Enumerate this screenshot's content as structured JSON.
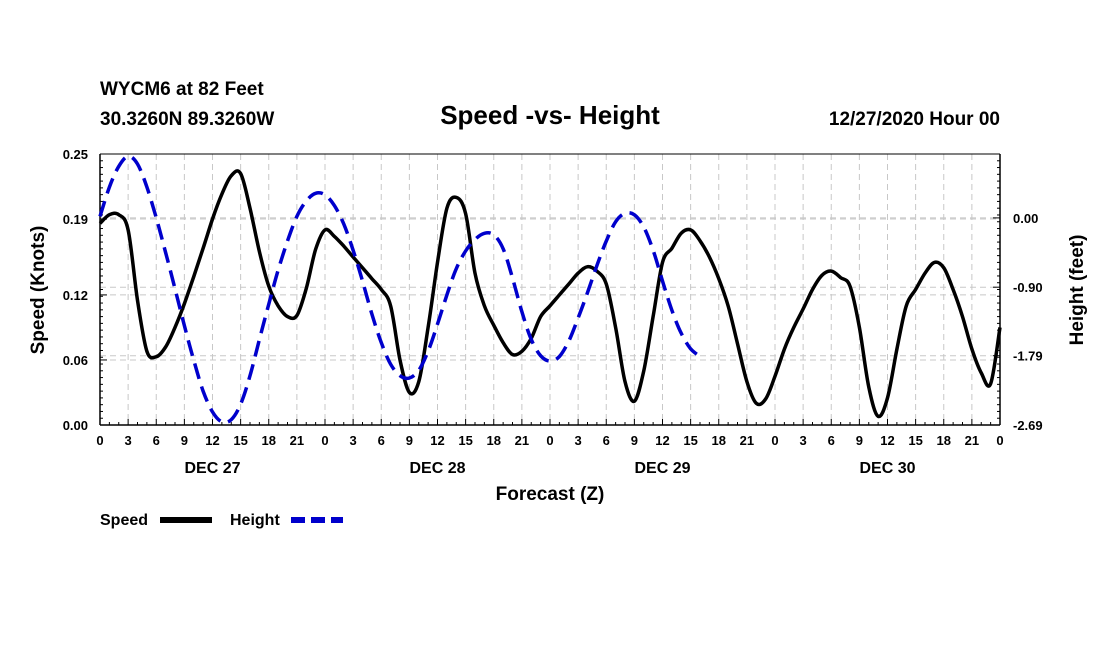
{
  "header": {
    "station": "WYCM6 at 82 Feet",
    "coords": "30.3260N 89.3260W",
    "title": "Speed -vs- Height",
    "datetime": "12/27/2020 Hour 00"
  },
  "chart_data": {
    "type": "line",
    "title": "Speed -vs- Height",
    "xlabel": "Forecast (Z)",
    "ylabel_left": "Speed (Knots)",
    "ylabel_right": "Height (feet)",
    "x_hours": [
      0,
      96
    ],
    "x_tick_labels": [
      "0",
      "3",
      "6",
      "9",
      "12",
      "15",
      "18",
      "21",
      "0",
      "3",
      "6",
      "9",
      "12",
      "15",
      "18",
      "21",
      "0",
      "3",
      "6",
      "9",
      "12",
      "15",
      "18",
      "21",
      "0",
      "3",
      "6",
      "9",
      "12",
      "15",
      "18",
      "21",
      "0"
    ],
    "day_labels": [
      "DEC 27",
      "DEC 28",
      "DEC 29",
      "DEC 30"
    ],
    "y_left": {
      "min": 0.0,
      "max": 0.25,
      "ticks": [
        0.0,
        0.06,
        0.12,
        0.19,
        0.25
      ],
      "tick_labels": [
        "0.00",
        "0.06",
        "0.12",
        "0.19",
        "0.25"
      ]
    },
    "y_right": {
      "min": -2.69,
      "max": 0.83,
      "ticks": [
        0.0,
        -0.9,
        -1.79,
        -2.69
      ],
      "tick_labels": [
        "0.00",
        "-0.90",
        "-1.79",
        "-2.69"
      ]
    },
    "grid": true,
    "series": [
      {
        "name": "Speed",
        "axis": "left",
        "color": "#000000",
        "style": "solid",
        "points": [
          [
            0,
            0.186
          ],
          [
            1,
            0.194
          ],
          [
            2,
            0.194
          ],
          [
            3,
            0.18
          ],
          [
            4,
            0.115
          ],
          [
            5,
            0.068
          ],
          [
            6,
            0.063
          ],
          [
            7,
            0.072
          ],
          [
            8,
            0.09
          ],
          [
            9,
            0.112
          ],
          [
            10,
            0.137
          ],
          [
            11,
            0.163
          ],
          [
            12,
            0.19
          ],
          [
            13,
            0.213
          ],
          [
            14,
            0.23
          ],
          [
            15,
            0.232
          ],
          [
            16,
            0.2
          ],
          [
            17,
            0.16
          ],
          [
            18,
            0.128
          ],
          [
            19,
            0.11
          ],
          [
            20,
            0.1
          ],
          [
            21,
            0.101
          ],
          [
            22,
            0.126
          ],
          [
            23,
            0.162
          ],
          [
            24,
            0.18
          ],
          [
            25,
            0.174
          ],
          [
            26,
            0.165
          ],
          [
            27,
            0.155
          ],
          [
            28,
            0.145
          ],
          [
            29,
            0.135
          ],
          [
            30,
            0.125
          ],
          [
            31,
            0.11
          ],
          [
            32,
            0.06
          ],
          [
            33,
            0.03
          ],
          [
            34,
            0.04
          ],
          [
            35,
            0.09
          ],
          [
            36,
            0.15
          ],
          [
            37,
            0.2
          ],
          [
            38,
            0.21
          ],
          [
            39,
            0.195
          ],
          [
            40,
            0.14
          ],
          [
            41,
            0.11
          ],
          [
            42,
            0.092
          ],
          [
            43,
            0.076
          ],
          [
            44,
            0.065
          ],
          [
            45,
            0.068
          ],
          [
            46,
            0.08
          ],
          [
            47,
            0.1
          ],
          [
            48,
            0.11
          ],
          [
            49,
            0.12
          ],
          [
            50,
            0.13
          ],
          [
            51,
            0.14
          ],
          [
            52,
            0.146
          ],
          [
            53,
            0.142
          ],
          [
            54,
            0.13
          ],
          [
            55,
            0.09
          ],
          [
            56,
            0.04
          ],
          [
            57,
            0.022
          ],
          [
            58,
            0.05
          ],
          [
            59,
            0.1
          ],
          [
            60,
            0.15
          ],
          [
            61,
            0.163
          ],
          [
            62,
            0.177
          ],
          [
            63,
            0.18
          ],
          [
            64,
            0.17
          ],
          [
            65,
            0.155
          ],
          [
            66,
            0.135
          ],
          [
            67,
            0.11
          ],
          [
            68,
            0.075
          ],
          [
            69,
            0.04
          ],
          [
            70,
            0.02
          ],
          [
            71,
            0.024
          ],
          [
            72,
            0.045
          ],
          [
            73,
            0.07
          ],
          [
            74,
            0.09
          ],
          [
            75,
            0.107
          ],
          [
            76,
            0.125
          ],
          [
            77,
            0.138
          ],
          [
            78,
            0.142
          ],
          [
            79,
            0.136
          ],
          [
            80,
            0.128
          ],
          [
            81,
            0.09
          ],
          [
            82,
            0.035
          ],
          [
            83,
            0.008
          ],
          [
            84,
            0.025
          ],
          [
            85,
            0.07
          ],
          [
            86,
            0.11
          ],
          [
            87,
            0.125
          ],
          [
            88,
            0.14
          ],
          [
            89,
            0.15
          ],
          [
            90,
            0.145
          ],
          [
            91,
            0.125
          ],
          [
            92,
            0.1
          ],
          [
            93,
            0.07
          ],
          [
            94,
            0.048
          ],
          [
            95,
            0.038
          ],
          [
            96,
            0.09
          ]
        ]
      },
      {
        "name": "Height",
        "axis": "right",
        "color": "#0000cc",
        "style": "dashed",
        "points": [
          [
            0,
            0.02
          ],
          [
            1,
            0.4
          ],
          [
            2,
            0.67
          ],
          [
            3,
            0.8
          ],
          [
            4,
            0.7
          ],
          [
            5,
            0.4
          ],
          [
            6,
            0.0
          ],
          [
            7,
            -0.45
          ],
          [
            8,
            -0.92
          ],
          [
            9,
            -1.4
          ],
          [
            10,
            -1.85
          ],
          [
            11,
            -2.25
          ],
          [
            12,
            -2.52
          ],
          [
            13,
            -2.65
          ],
          [
            14,
            -2.62
          ],
          [
            15,
            -2.42
          ],
          [
            16,
            -2.05
          ],
          [
            17,
            -1.58
          ],
          [
            18,
            -1.12
          ],
          [
            19,
            -0.68
          ],
          [
            20,
            -0.3
          ],
          [
            21,
            0.02
          ],
          [
            22,
            0.22
          ],
          [
            23,
            0.32
          ],
          [
            24,
            0.3
          ],
          [
            25,
            0.16
          ],
          [
            26,
            -0.08
          ],
          [
            27,
            -0.42
          ],
          [
            28,
            -0.82
          ],
          [
            29,
            -1.25
          ],
          [
            30,
            -1.62
          ],
          [
            31,
            -1.9
          ],
          [
            32,
            -2.05
          ],
          [
            33,
            -2.08
          ],
          [
            34,
            -1.98
          ],
          [
            35,
            -1.73
          ],
          [
            36,
            -1.38
          ],
          [
            37,
            -1.0
          ],
          [
            38,
            -0.66
          ],
          [
            39,
            -0.43
          ],
          [
            40,
            -0.28
          ],
          [
            41,
            -0.2
          ],
          [
            42,
            -0.22
          ],
          [
            43,
            -0.4
          ],
          [
            44,
            -0.78
          ],
          [
            45,
            -1.22
          ],
          [
            46,
            -1.58
          ],
          [
            47,
            -1.79
          ],
          [
            48,
            -1.86
          ],
          [
            49,
            -1.8
          ],
          [
            50,
            -1.6
          ],
          [
            51,
            -1.3
          ],
          [
            52,
            -0.97
          ],
          [
            53,
            -0.62
          ],
          [
            54,
            -0.3
          ],
          [
            55,
            -0.05
          ],
          [
            56,
            0.06
          ],
          [
            57,
            0.04
          ],
          [
            58,
            -0.12
          ],
          [
            59,
            -0.42
          ],
          [
            60,
            -0.82
          ],
          [
            61,
            -1.2
          ],
          [
            62,
            -1.5
          ],
          [
            63,
            -1.7
          ],
          [
            64,
            -1.8
          ]
        ]
      }
    ],
    "legend_position": "bottom-left"
  },
  "legend": [
    {
      "label": "Speed",
      "color": "#000000",
      "style": "solid"
    },
    {
      "label": "Height",
      "color": "#0000cc",
      "style": "dashed"
    }
  ]
}
